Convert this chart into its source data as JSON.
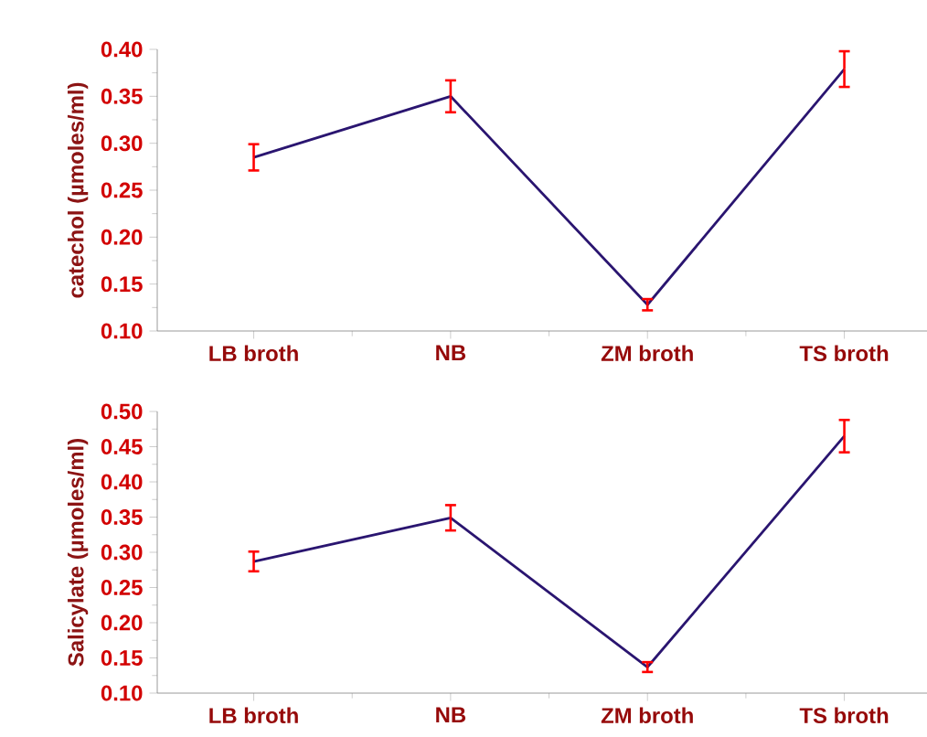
{
  "chart_data": [
    {
      "type": "line",
      "ylabel": "catechol (µmoles/ml)",
      "categories": [
        "LB broth",
        "NB",
        "ZM broth",
        "TS broth"
      ],
      "series": [
        {
          "color": "#2a1570",
          "values": [
            0.285,
            0.35,
            0.128,
            0.379
          ],
          "errors": [
            0.014,
            0.017,
            0.006,
            0.019
          ]
        }
      ],
      "ylim": [
        0.1,
        0.4
      ],
      "yticks": [
        {
          "value": 0.1,
          "label": "0.10"
        },
        0.15,
        {
          "value": 0.2,
          "label": "0.20"
        },
        0.25,
        {
          "value": 0.3,
          "label": "0.30"
        },
        0.35,
        {
          "value": 0.4,
          "label": "0.40"
        }
      ],
      "marker": "none",
      "line_style": "solid"
    },
    {
      "type": "line",
      "ylabel": "Salicylate (µmoles/ml)",
      "categories": [
        "LB broth",
        "NB",
        "ZM broth",
        "TS broth"
      ],
      "series": [
        {
          "color": "#2a1570",
          "values": [
            0.287,
            0.349,
            0.137,
            0.465
          ],
          "errors": [
            0.014,
            0.018,
            0.007,
            0.023
          ]
        }
      ],
      "ylim": [
        0.1,
        0.5
      ],
      "yticks": [
        {
          "value": 0.1,
          "label": "0.10"
        },
        0.15,
        {
          "value": 0.2,
          "label": "0.20"
        },
        0.25,
        {
          "value": 0.3,
          "label": "0.30"
        },
        0.35,
        {
          "value": 0.4,
          "label": "0.40"
        },
        0.45,
        {
          "value": 0.5,
          "label": "0.50"
        }
      ],
      "marker": "none",
      "line_style": "solid"
    }
  ]
}
